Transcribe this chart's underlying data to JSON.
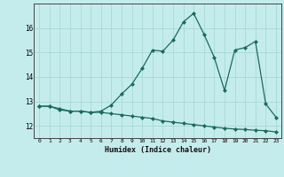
{
  "title": "",
  "xlabel": "Humidex (Indice chaleur)",
  "ylabel": "",
  "background_color": "#c5ecec",
  "line_color": "#1a6b5a",
  "grid_color": "#a8d8d8",
  "x_values": [
    0,
    1,
    2,
    3,
    4,
    5,
    6,
    7,
    8,
    9,
    10,
    11,
    12,
    13,
    14,
    15,
    16,
    17,
    18,
    19,
    20,
    21,
    22,
    23
  ],
  "series1": [
    12.8,
    12.8,
    12.7,
    12.6,
    12.6,
    12.55,
    12.6,
    12.85,
    13.3,
    13.7,
    14.35,
    15.1,
    15.05,
    15.5,
    16.25,
    16.6,
    15.75,
    14.8,
    13.45,
    15.1,
    15.2,
    15.45,
    12.9,
    12.35
  ],
  "series2": [
    12.8,
    12.8,
    12.65,
    12.6,
    12.6,
    12.55,
    12.55,
    12.5,
    12.45,
    12.4,
    12.35,
    12.3,
    12.2,
    12.15,
    12.1,
    12.05,
    12.0,
    11.95,
    11.9,
    11.87,
    11.85,
    11.82,
    11.8,
    11.75
  ],
  "ylim": [
    11.5,
    17.0
  ],
  "yticks": [
    12,
    13,
    14,
    15,
    16
  ],
  "xlim": [
    -0.5,
    23.5
  ]
}
